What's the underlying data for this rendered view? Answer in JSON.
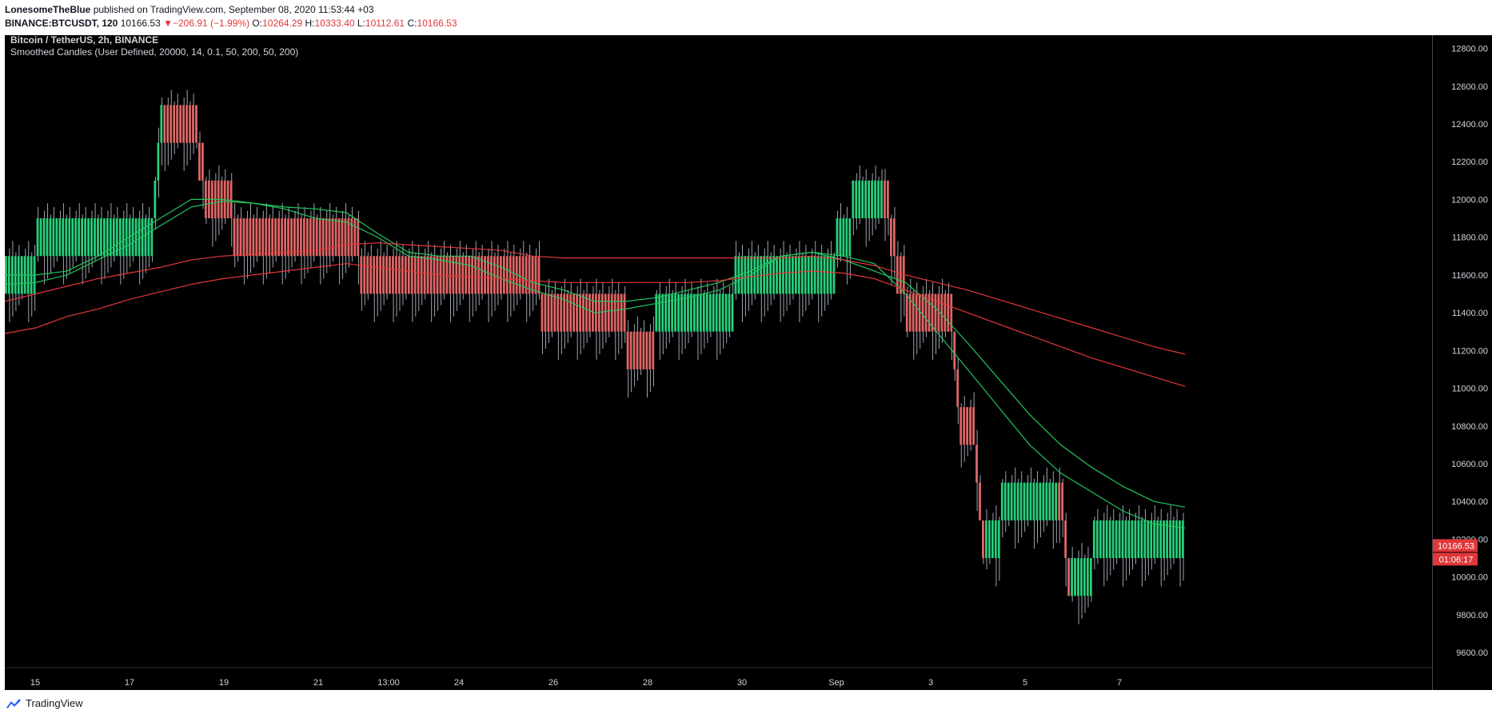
{
  "header": {
    "author": "LonesomeTheBlue",
    "published_text": "published on TradingView.com, September 08, 2020 11:53:44 +03",
    "symbol": "BINANCE:BTCUSDT, 120",
    "last": "10166.53",
    "change_arrow": "▼",
    "change": "−206.91 (−1.99%)",
    "open_label": "O:",
    "open": "10264.29",
    "high_label": "H:",
    "high": "10333.40",
    "low_label": "L:",
    "low": "10112.61",
    "close_label": "C:",
    "close": "10166.53"
  },
  "footer": {
    "brand": "TradingView"
  },
  "colors": {
    "up": "#26d07c",
    "down": "#e06666",
    "ema_fast": "#22c55e",
    "ema_slow": "#e0373a",
    "wick": "#9ca3af",
    "price_tag": "#e0373a"
  },
  "chart_data": {
    "type": "candlestick",
    "title": "Bitcoin / TetherUS, 2h, BINANCE",
    "subtitle": "Smoothed Candles (User Defined, 20000, 14, 0.1, 50, 200, 50, 200)",
    "ylim": [
      9520,
      12870
    ],
    "y_ticks": [
      "12800.00",
      "12600.00",
      "12400.00",
      "12200.00",
      "12000.00",
      "11800.00",
      "11600.00",
      "11400.00",
      "11200.00",
      "11000.00",
      "10800.00",
      "10600.00",
      "10400.00",
      "10200.00",
      "10000.00",
      "9800.00",
      "9600.00"
    ],
    "x_ticks": [
      "15",
      "17",
      "19",
      "21",
      "13:00",
      "24",
      "26",
      "28",
      "30",
      "Sep",
      "3",
      "5",
      "7"
    ],
    "last_price_label": "10166.53",
    "countdown_label": "01:06:17",
    "blocks": [
      {
        "d": "up",
        "o": 11500,
        "c": 11700,
        "n": 10
      },
      {
        "d": "up",
        "o": 11700,
        "c": 11900,
        "n": 37
      },
      {
        "d": "up",
        "o": 11900,
        "c": 12100,
        "n": 1
      },
      {
        "d": "up",
        "o": 12100,
        "c": 12300,
        "n": 1
      },
      {
        "d": "up",
        "o": 12300,
        "c": 12500,
        "n": 1
      },
      {
        "d": "down",
        "o": 12500,
        "c": 12300,
        "n": 11
      },
      {
        "d": "down",
        "o": 12300,
        "c": 12100,
        "n": 2
      },
      {
        "d": "down",
        "o": 12100,
        "c": 11900,
        "n": 9
      },
      {
        "d": "down",
        "o": 11900,
        "c": 11700,
        "n": 40
      },
      {
        "d": "down",
        "o": 11700,
        "c": 11500,
        "n": 57
      },
      {
        "d": "down",
        "o": 11500,
        "c": 11300,
        "n": 27
      },
      {
        "d": "down",
        "o": 11300,
        "c": 11100,
        "n": 9
      },
      {
        "d": "up",
        "o": 11300,
        "c": 11500,
        "n": 25
      },
      {
        "d": "up",
        "o": 11500,
        "c": 11700,
        "n": 32
      },
      {
        "d": "up",
        "o": 11700,
        "c": 11900,
        "n": 5
      },
      {
        "d": "up",
        "o": 11900,
        "c": 12100,
        "n": 10
      },
      {
        "d": "down",
        "o": 12100,
        "c": 11900,
        "n": 2
      },
      {
        "d": "down",
        "o": 11900,
        "c": 11700,
        "n": 2
      },
      {
        "d": "down",
        "o": 11700,
        "c": 11500,
        "n": 3
      },
      {
        "d": "down",
        "o": 11500,
        "c": 11300,
        "n": 15
      },
      {
        "d": "down",
        "o": 11300,
        "c": 11100,
        "n": 1
      },
      {
        "d": "down",
        "o": 11100,
        "c": 10900,
        "n": 1
      },
      {
        "d": "down",
        "o": 10900,
        "c": 10700,
        "n": 5
      },
      {
        "d": "down",
        "o": 10700,
        "c": 10500,
        "n": 1
      },
      {
        "d": "down",
        "o": 10500,
        "c": 10300,
        "n": 1
      },
      {
        "d": "down",
        "o": 10300,
        "c": 10100,
        "n": 1
      },
      {
        "d": "up",
        "o": 10100,
        "c": 10300,
        "n": 5
      },
      {
        "d": "up",
        "o": 10300,
        "c": 10500,
        "n": 18
      },
      {
        "d": "down",
        "o": 10500,
        "c": 10300,
        "n": 2
      },
      {
        "d": "down",
        "o": 10300,
        "c": 10100,
        "n": 1
      },
      {
        "d": "down",
        "o": 10100,
        "c": 9900,
        "n": 1
      },
      {
        "d": "up",
        "o": 9900,
        "c": 10100,
        "n": 7
      },
      {
        "d": "up",
        "o": 10100,
        "c": 10300,
        "n": 29
      }
    ],
    "ema_fast": [
      11600,
      11600,
      11620,
      11700,
      11800,
      11900,
      12000,
      12000,
      11980,
      11950,
      11900,
      11880,
      11800,
      11700,
      11680,
      11650,
      11580,
      11520,
      11470,
      11400,
      11420,
      11450,
      11480,
      11520,
      11600,
      11700,
      11720,
      11700,
      11660,
      11500,
      11300,
      11100,
      10900,
      10700,
      10550,
      10450,
      10350,
      10280,
      10260
    ],
    "ema_fast2": [
      11550,
      11560,
      11600,
      11680,
      11760,
      11860,
      11960,
      11990,
      11980,
      11960,
      11950,
      11930,
      11820,
      11720,
      11700,
      11700,
      11640,
      11560,
      11520,
      11460,
      11460,
      11480,
      11520,
      11560,
      11620,
      11700,
      11720,
      11680,
      11620,
      11560,
      11420,
      11240,
      11050,
      10860,
      10700,
      10580,
      10480,
      10400,
      10370
    ],
    "ema_slow": [
      11460,
      11500,
      11540,
      11580,
      11610,
      11640,
      11680,
      11700,
      11710,
      11720,
      11730,
      11760,
      11770,
      11760,
      11750,
      11740,
      11730,
      11700,
      11690,
      11690,
      11690,
      11690,
      11690,
      11690,
      11690,
      11690,
      11700,
      11680,
      11650,
      11600,
      11560,
      11520,
      11470,
      11420,
      11370,
      11320,
      11270,
      11220,
      11180
    ],
    "ema_slow2": [
      11290,
      11320,
      11380,
      11420,
      11470,
      11510,
      11550,
      11580,
      11600,
      11620,
      11640,
      11660,
      11640,
      11620,
      11600,
      11590,
      11580,
      11570,
      11560,
      11560,
      11560,
      11560,
      11560,
      11570,
      11590,
      11610,
      11620,
      11610,
      11580,
      11520,
      11460,
      11400,
      11340,
      11280,
      11220,
      11160,
      11110,
      11060,
      11010
    ]
  }
}
